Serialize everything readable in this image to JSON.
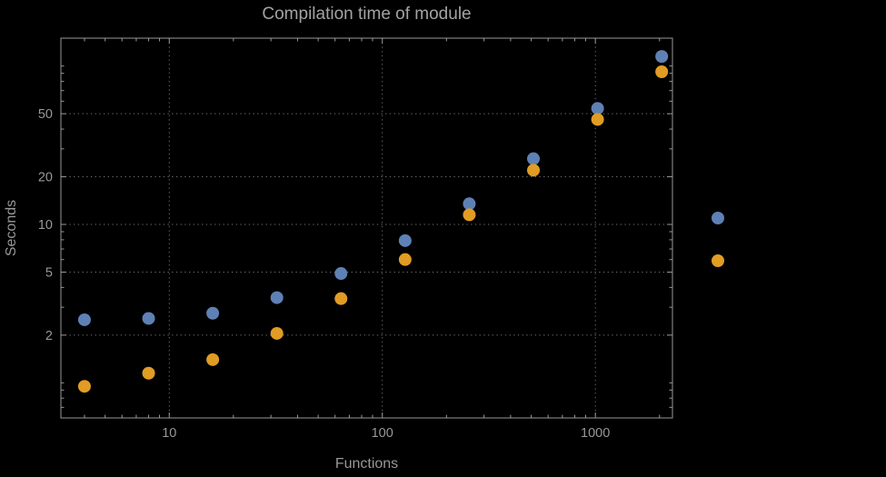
{
  "page": {
    "background": "#000000"
  },
  "chart": {
    "title": "Compilation time of module",
    "xlabel": "Functions",
    "ylabel": "Seconds"
  },
  "chart_data": {
    "type": "scatter",
    "title": "Compilation time of module",
    "xlabel": "Functions",
    "ylabel": "Seconds",
    "x_scale": "log",
    "y_scale": "log",
    "xlim": [
      3.1,
      2300
    ],
    "ylim": [
      0.6,
      150
    ],
    "grid": true,
    "grid_style": "dotted",
    "x": [
      4,
      8,
      16,
      32,
      64,
      128,
      256,
      512,
      1024,
      2048
    ],
    "series": [
      {
        "name": "series-1-blue",
        "color": "#5e81b5",
        "values": [
          2.5,
          2.55,
          2.75,
          3.45,
          4.9,
          7.9,
          13.5,
          26,
          54,
          115
        ]
      },
      {
        "name": "series-2-orange",
        "color": "#e19c24",
        "values": [
          0.95,
          1.15,
          1.4,
          2.05,
          3.4,
          6.0,
          11.5,
          22,
          46,
          92
        ]
      }
    ],
    "x_ticks": [
      {
        "value": 10,
        "label": "10"
      },
      {
        "value": 100,
        "label": "100"
      },
      {
        "value": 1000,
        "label": "1000"
      }
    ],
    "y_ticks": [
      {
        "value": 2,
        "label": "2"
      },
      {
        "value": 5,
        "label": "5"
      },
      {
        "value": 10,
        "label": "10"
      },
      {
        "value": 20,
        "label": "20"
      },
      {
        "value": 50,
        "label": "50"
      }
    ],
    "legend_markers": [
      {
        "color": "#5e81b5"
      },
      {
        "color": "#e19c24"
      }
    ],
    "colors": {
      "background": "#000000",
      "frame": "#989898",
      "grid": "#6f6f6f",
      "text": "#989898",
      "title": "#a3a3a3"
    }
  }
}
